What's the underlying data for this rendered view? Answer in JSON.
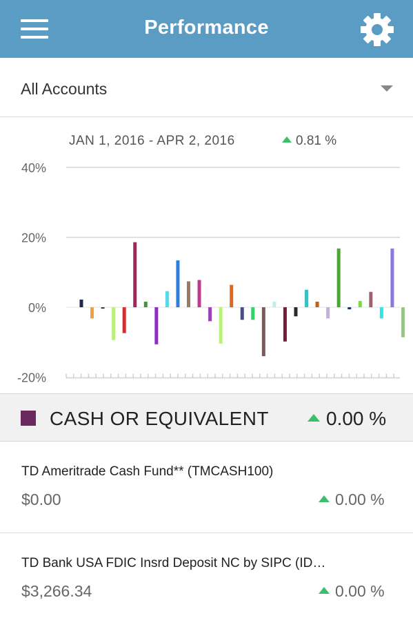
{
  "header": {
    "title": "Performance",
    "menu_icon": "hamburger-menu-icon",
    "settings_icon": "gear-icon",
    "background_color": "#5b9cc4"
  },
  "account_selector": {
    "selected": "All Accounts",
    "icon": "chevron-down-icon"
  },
  "chart_summary": {
    "date_range": "JAN 1, 2016 - APR 2, 2016",
    "total_change": "0.81 %",
    "direction_icon": "up-triangle-icon",
    "up_color": "#3bbf6a"
  },
  "chart_data": {
    "type": "bar",
    "title": "",
    "xlabel": "",
    "ylabel": "",
    "ylim": [
      -20,
      40
    ],
    "yticks": [
      40,
      20,
      0,
      -20
    ],
    "ytick_labels": [
      "40%",
      "20%",
      "0%",
      "-20%"
    ],
    "grid": true,
    "legend": "none",
    "values": [
      2.2,
      -3.2,
      -0.4,
      -9.4,
      -7.4,
      18.6,
      1.6,
      -10.6,
      4.6,
      13.4,
      7.4,
      7.8,
      -4.0,
      -10.4,
      6.4,
      -3.6,
      -3.6,
      -14.0,
      1.6,
      -9.8,
      -2.6,
      5.0,
      1.6,
      -3.2,
      16.8,
      -0.6,
      1.8,
      4.4,
      -3.2,
      16.8,
      -8.6
    ],
    "colors": [
      "#1e2a4a",
      "#f2a13a",
      "#3a3a3a",
      "#b8f07a",
      "#d62e2e",
      "#a3265c",
      "#3a9a3a",
      "#8e2ec6",
      "#5ad8e6",
      "#2b7fe0",
      "#9a7a60",
      "#c23a8e",
      "#a040b8",
      "#b8f07a",
      "#e0681e",
      "#4a4a8e",
      "#36d06a",
      "#7a5a5a",
      "#bfeeea",
      "#7a1a3a",
      "#2a2a2a",
      "#3ac0c0",
      "#c0601e",
      "#c4b0e0",
      "#4aa82a",
      "#1a3a6a",
      "#7ad84a",
      "#a0606e",
      "#2ae8e8",
      "#8a7ae0",
      "#9ac48a"
    ]
  },
  "category": {
    "name": "CASH OR EQUIVALENT",
    "change": "0.00 %",
    "swatch_color": "#6a2a5e"
  },
  "holdings": [
    {
      "name": "TD Ameritrade Cash Fund** (TMCASH100)",
      "value": "$0.00",
      "change": "0.00 %"
    },
    {
      "name": "TD Bank USA FDIC Insrd Deposit NC by SIPC (ID…",
      "value": "$3,266.34",
      "change": "0.00 %"
    }
  ]
}
